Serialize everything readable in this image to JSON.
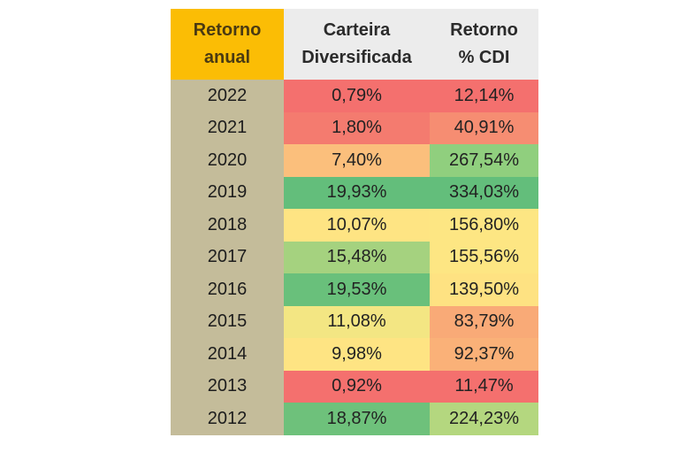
{
  "table": {
    "headers": {
      "year": [
        "Retorno",
        "anual"
      ],
      "portfolio": [
        "Carteira",
        "Diversificada"
      ],
      "cdi": [
        "Retorno",
        "% CDI"
      ]
    },
    "rows": [
      {
        "year": "2022",
        "portfolio": "0,79%",
        "cdi": "12,14%",
        "portfolio_color": "#f4706e",
        "cdi_color": "#f4706e"
      },
      {
        "year": "2021",
        "portfolio": "1,80%",
        "cdi": "40,91%",
        "portfolio_color": "#f47b6f",
        "cdi_color": "#f68d72"
      },
      {
        "year": "2020",
        "portfolio": "7,40%",
        "cdi": "267,54%",
        "portfolio_color": "#fbbf7c",
        "cdi_color": "#90cf7e"
      },
      {
        "year": "2019",
        "portfolio": "19,93%",
        "cdi": "334,03%",
        "portfolio_color": "#63be7b",
        "cdi_color": "#63be7b"
      },
      {
        "year": "2018",
        "portfolio": "10,07%",
        "cdi": "156,80%",
        "portfolio_color": "#fee483",
        "cdi_color": "#fde683"
      },
      {
        "year": "2017",
        "portfolio": "15,48%",
        "cdi": "155,56%",
        "portfolio_color": "#a5d27f",
        "cdi_color": "#fde683"
      },
      {
        "year": "2016",
        "portfolio": "19,53%",
        "cdi": "139,50%",
        "portfolio_color": "#69c07b",
        "cdi_color": "#fee282"
      },
      {
        "year": "2015",
        "portfolio": "11,08%",
        "cdi": "83,79%",
        "portfolio_color": "#f3e683",
        "cdi_color": "#f9aa77"
      },
      {
        "year": "2014",
        "portfolio": "9,98%",
        "cdi": "92,37%",
        "portfolio_color": "#fee483",
        "cdi_color": "#fab178"
      },
      {
        "year": "2013",
        "portfolio": "0,92%",
        "cdi": "11,47%",
        "portfolio_color": "#f4706e",
        "cdi_color": "#f4706e"
      },
      {
        "year": "2012",
        "portfolio": "18,87%",
        "cdi": "224,23%",
        "portfolio_color": "#6ec17b",
        "cdi_color": "#b4d77f"
      }
    ]
  }
}
